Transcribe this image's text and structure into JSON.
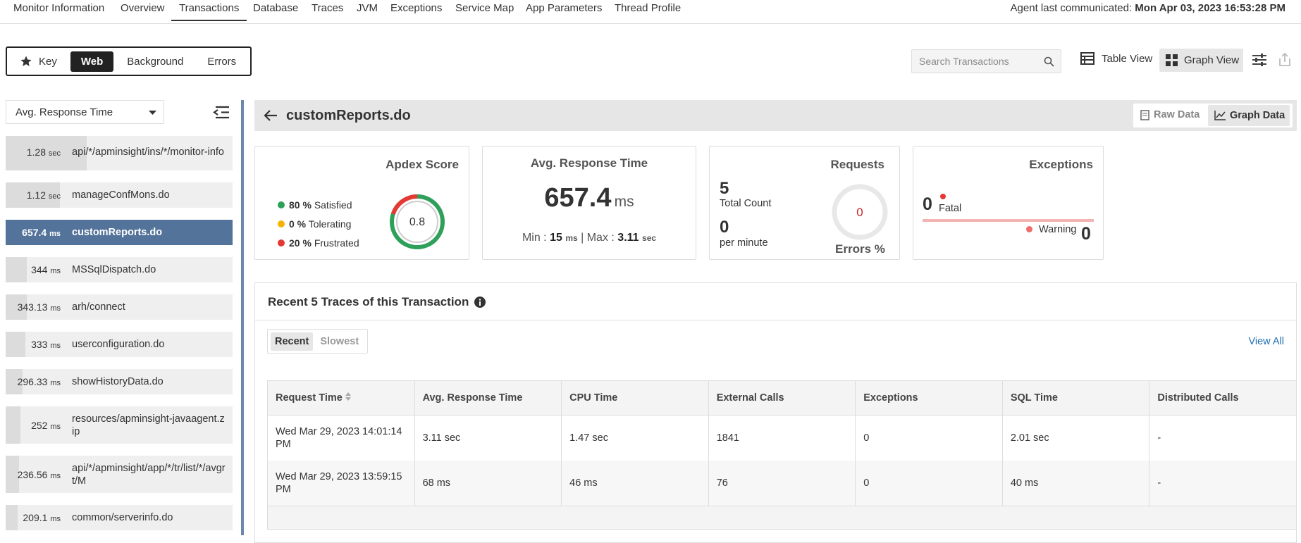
{
  "nav": {
    "tabs": [
      "Monitor Information",
      "Overview",
      "Transactions",
      "Database",
      "Traces",
      "JVM",
      "Exceptions",
      "Service Map",
      "App Parameters",
      "Thread Profile"
    ],
    "active": 2,
    "agent_label": "Agent last communicated:",
    "agent_time": "Mon Apr 03, 2023 16:53:28 PM"
  },
  "filters": {
    "items": [
      "Key",
      "Web",
      "Background",
      "Errors"
    ],
    "active": 1
  },
  "search": {
    "placeholder": "Search Transactions"
  },
  "views": {
    "table": "Table View",
    "graph": "Graph View"
  },
  "sidebar": {
    "sort": "Avg. Response Time",
    "selected": 2,
    "items": [
      {
        "value": "1.28",
        "unit": "sec",
        "name": "api/*/apminsight/ins/*/monitor-info"
      },
      {
        "value": "1.12",
        "unit": "sec",
        "name": "manageConfMons.do"
      },
      {
        "value": "657.4",
        "unit": "ms",
        "name": "customReports.do"
      },
      {
        "value": "344",
        "unit": "ms",
        "name": "MSSqlDispatch.do"
      },
      {
        "value": "343.13",
        "unit": "ms",
        "name": "arh/connect"
      },
      {
        "value": "333",
        "unit": "ms",
        "name": "userconfiguration.do"
      },
      {
        "value": "296.33",
        "unit": "ms",
        "name": "showHistoryData.do"
      },
      {
        "value": "252",
        "unit": "ms",
        "name": "resources/apminsight-javaagent.zip"
      },
      {
        "value": "236.56",
        "unit": "ms",
        "name": "api/*/apminsight/app/*/tr/list/*/avgrt/M"
      },
      {
        "value": "209.1",
        "unit": "ms",
        "name": "common/serverinfo.do"
      }
    ]
  },
  "detail": {
    "title": "customReports.do",
    "raw_data": "Raw Data",
    "graph_data": "Graph Data"
  },
  "apdex": {
    "title": "Apdex Score",
    "score": "0.8",
    "legend": [
      {
        "pct": "80 %",
        "label": "Satisfied"
      },
      {
        "pct": "0 %",
        "label": "Tolerating"
      },
      {
        "pct": "20 %",
        "label": "Frustrated"
      }
    ]
  },
  "response": {
    "title": "Avg. Response Time",
    "value": "657.4",
    "unit": "ms",
    "min_label": "Min :",
    "min": "15",
    "min_unit": "ms",
    "max_label": "Max :",
    "max": "3.11",
    "max_unit": "sec"
  },
  "requests": {
    "title": "Requests",
    "total": "5",
    "total_label": "Total Count",
    "rate": "0",
    "rate_label": "per minute",
    "errors": "0",
    "errors_label": "Errors %"
  },
  "exceptions": {
    "title": "Exceptions",
    "fatal": "0",
    "fatal_label": "Fatal",
    "warning_label": "Warning",
    "warning": "0"
  },
  "traces": {
    "title": "Recent 5 Traces of this Transaction",
    "tabs": [
      "Recent",
      "Slowest"
    ],
    "view_all": "View All",
    "columns": [
      "Request Time",
      "Avg. Response Time",
      "CPU Time",
      "External Calls",
      "Exceptions",
      "SQL Time",
      "Distributed Calls"
    ],
    "rows": [
      [
        "Wed Mar 29, 2023 14:01:14 PM",
        "3.11 sec",
        "1.47 sec",
        "1841",
        "0",
        "2.01 sec",
        "-"
      ],
      [
        "Wed Mar 29, 2023 13:59:15 PM",
        "68 ms",
        "46 ms",
        "76",
        "0",
        "40 ms",
        "-"
      ]
    ]
  }
}
